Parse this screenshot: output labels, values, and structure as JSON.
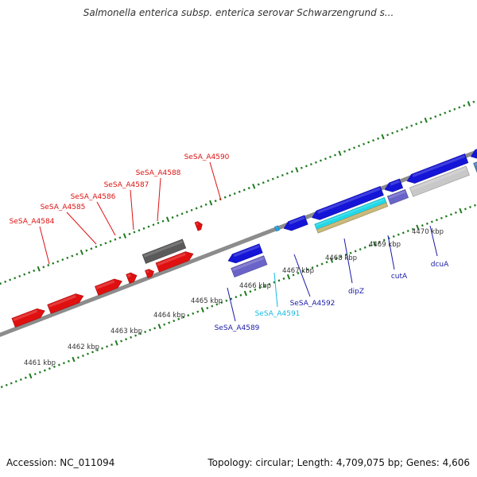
{
  "title": "Salmonella enterica subsp. enterica serovar Schwarzengrund s...",
  "footer": {
    "accession": "Accession: NC_011094",
    "summary": "Topology: circular; Length: 4,709,075 bp; Genes: 4,606"
  },
  "colors": {
    "backbone": "#8c8c8c",
    "ruler_dots": "#1f7a1f",
    "forward_gene": "#e01010",
    "forward_pseudo": "#5a5a5a",
    "reverse_gene": "#1515d8",
    "reverse_light": "#6a63c8",
    "rna_cyan": "#20d8e8",
    "tan_feature": "#c8b878",
    "steel_gene": "#4a7fb8",
    "grey_feature": "#c8c8c8",
    "label_red": "#dd1111",
    "label_blue": "#1a1aa8",
    "label_cyan": "#18b8e0"
  },
  "kbp_labels": [
    "4461 kbp",
    "4462 kbp",
    "4463 kbp",
    "4464 kbp",
    "4465 kbp",
    "4466 kbp",
    "4467 kbp",
    "4468 kbp",
    "4469 kbp",
    "4470 kbp"
  ],
  "gene_labels": [
    {
      "id": "SeSA_A4584",
      "text": "SeSA_A4584",
      "color": "red"
    },
    {
      "id": "SeSA_A4585",
      "text": "SeSA_A4585",
      "color": "red"
    },
    {
      "id": "SeSA_A4586",
      "text": "SeSA_A4586",
      "color": "red"
    },
    {
      "id": "SeSA_A4587",
      "text": "SeSA_A4587",
      "color": "red"
    },
    {
      "id": "SeSA_A4588",
      "text": "SeSA_A4588",
      "color": "red"
    },
    {
      "id": "SeSA_A4590",
      "text": "SeSA_A4590",
      "color": "red"
    },
    {
      "id": "SeSA_A4589",
      "text": "SeSA_A4589",
      "color": "blue"
    },
    {
      "id": "SeSA_A4591",
      "text": "SeSA_A4591",
      "color": "cyan"
    },
    {
      "id": "SeSA_A4592",
      "text": "SeSA_A4592",
      "color": "blue"
    },
    {
      "id": "dipZ",
      "text": "dipZ",
      "color": "blue"
    },
    {
      "id": "cutA",
      "text": "cutA",
      "color": "blue"
    },
    {
      "id": "dcuA",
      "text": "dcuA",
      "color": "blue"
    }
  ]
}
